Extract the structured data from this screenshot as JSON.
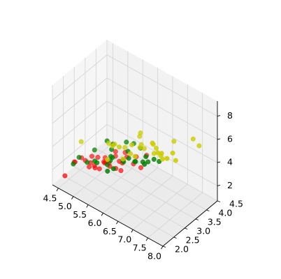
{
  "chart_data": {
    "type": "scatter",
    "projection": "3d",
    "title": "",
    "xlabel": "",
    "ylabel": "",
    "zlabel": "",
    "xlim": [
      4.3,
      8.0
    ],
    "ylim": [
      2.0,
      4.5
    ],
    "zlim": [
      0.7,
      9.3
    ],
    "xticks": [
      4.5,
      5.0,
      5.5,
      6.0,
      6.5,
      7.0,
      7.5,
      8.0
    ],
    "xtick_labels": [
      "4.5",
      "5.0",
      "5.5",
      "6.0",
      "6.5",
      "7.0",
      "7.5",
      "8.0"
    ],
    "yticks": [
      2.0,
      2.5,
      3.0,
      3.5,
      4.0,
      4.5
    ],
    "ytick_labels": [
      "2.0",
      "2.5",
      "3.0",
      "3.5",
      "4.0",
      "4.5"
    ],
    "zticks": [
      2,
      4,
      6,
      8
    ],
    "ztick_labels": [
      "2",
      "4",
      "6",
      "8"
    ],
    "grid": true,
    "legend": false,
    "series": [
      {
        "color": "#ff0000",
        "points": [
          [
            4.3,
            3.0,
            1.1
          ],
          [
            4.4,
            2.9,
            1.4
          ],
          [
            4.6,
            3.4,
            1.4
          ],
          [
            4.7,
            3.2,
            1.3
          ],
          [
            4.8,
            3.0,
            1.4
          ],
          [
            4.9,
            3.1,
            1.5
          ],
          [
            5.0,
            3.4,
            1.5
          ],
          [
            5.0,
            3.5,
            1.3
          ],
          [
            5.1,
            3.5,
            1.4
          ],
          [
            5.1,
            3.8,
            1.5
          ],
          [
            5.2,
            3.4,
            1.4
          ],
          [
            5.4,
            3.9,
            1.7
          ],
          [
            5.4,
            3.7,
            1.5
          ],
          [
            5.5,
            4.2,
            1.4
          ],
          [
            5.7,
            4.4,
            1.5
          ],
          [
            5.8,
            4.0,
            1.2
          ],
          [
            4.8,
            3.4,
            1.6
          ],
          [
            5.0,
            3.0,
            1.6
          ],
          [
            5.1,
            3.3,
            1.7
          ],
          [
            5.3,
            3.7,
            1.5
          ],
          [
            5.7,
            3.8,
            1.7
          ],
          [
            5.2,
            4.1,
            1.5
          ],
          [
            4.9,
            3.6,
            1.4
          ],
          [
            5.5,
            3.5,
            1.3
          ],
          [
            4.6,
            3.1,
            1.5
          ],
          [
            5.0,
            3.2,
            1.2
          ],
          [
            4.4,
            3.2,
            1.3
          ],
          [
            5.1,
            3.8,
            1.9
          ],
          [
            5.4,
            3.4,
            1.5
          ],
          [
            4.5,
            2.3,
            1.3
          ]
        ]
      },
      {
        "color": "#008000",
        "points": [
          [
            5.0,
            2.0,
            3.5
          ],
          [
            5.1,
            2.5,
            3.0
          ],
          [
            5.5,
            2.4,
            3.7
          ],
          [
            5.6,
            2.9,
            3.6
          ],
          [
            5.7,
            2.6,
            3.5
          ],
          [
            5.8,
            2.7,
            4.1
          ],
          [
            6.0,
            2.2,
            4.0
          ],
          [
            6.1,
            2.8,
            4.0
          ],
          [
            6.2,
            2.2,
            4.5
          ],
          [
            6.3,
            2.5,
            4.9
          ],
          [
            6.4,
            2.9,
            4.3
          ],
          [
            6.6,
            3.0,
            4.4
          ],
          [
            6.7,
            3.1,
            4.4
          ],
          [
            6.8,
            2.8,
            4.8
          ],
          [
            7.0,
            3.2,
            4.7
          ],
          [
            6.9,
            3.1,
            4.9
          ],
          [
            5.9,
            3.2,
            4.8
          ],
          [
            6.0,
            3.4,
            4.5
          ],
          [
            5.6,
            3.0,
            4.5
          ],
          [
            5.2,
            2.7,
            3.9
          ],
          [
            4.9,
            2.4,
            3.3
          ],
          [
            5.5,
            2.3,
            4.0
          ],
          [
            6.5,
            2.8,
            4.6
          ],
          [
            5.7,
            2.8,
            4.5
          ],
          [
            6.3,
            3.3,
            4.7
          ],
          [
            6.1,
            3.0,
            4.6
          ],
          [
            5.8,
            2.6,
            4.0
          ],
          [
            6.7,
            3.0,
            5.0
          ],
          [
            6.2,
            2.9,
            4.3
          ],
          [
            5.4,
            3.0,
            4.5
          ]
        ]
      },
      {
        "color": "#cccc00",
        "points": [
          [
            4.9,
            2.5,
            4.5
          ],
          [
            5.6,
            2.8,
            4.9
          ],
          [
            5.8,
            2.7,
            5.1
          ],
          [
            6.0,
            2.2,
            5.0
          ],
          [
            6.1,
            2.6,
            5.6
          ],
          [
            6.3,
            2.5,
            5.0
          ],
          [
            6.4,
            2.7,
            5.3
          ],
          [
            6.5,
            3.0,
            5.5
          ],
          [
            6.7,
            2.5,
            5.8
          ],
          [
            6.9,
            3.1,
            5.4
          ],
          [
            7.1,
            3.0,
            5.9
          ],
          [
            7.2,
            3.0,
            5.8
          ],
          [
            7.4,
            2.8,
            6.1
          ],
          [
            7.7,
            2.6,
            6.9
          ],
          [
            7.7,
            3.8,
            6.7
          ],
          [
            7.9,
            3.8,
            6.4
          ],
          [
            6.3,
            3.3,
            6.0
          ],
          [
            6.4,
            3.2,
            5.3
          ],
          [
            6.7,
            3.3,
            5.7
          ],
          [
            6.8,
            3.2,
            5.9
          ],
          [
            7.2,
            3.6,
            6.1
          ],
          [
            7.6,
            3.0,
            6.6
          ],
          [
            5.8,
            2.8,
            5.1
          ],
          [
            6.2,
            3.4,
            5.4
          ],
          [
            6.9,
            3.2,
            5.7
          ],
          [
            7.7,
            3.0,
            6.1
          ],
          [
            6.5,
            3.2,
            5.1
          ],
          [
            6.0,
            3.0,
            4.8
          ],
          [
            7.3,
            2.9,
            6.3
          ],
          [
            6.3,
            2.9,
            5.6
          ]
        ]
      }
    ]
  }
}
